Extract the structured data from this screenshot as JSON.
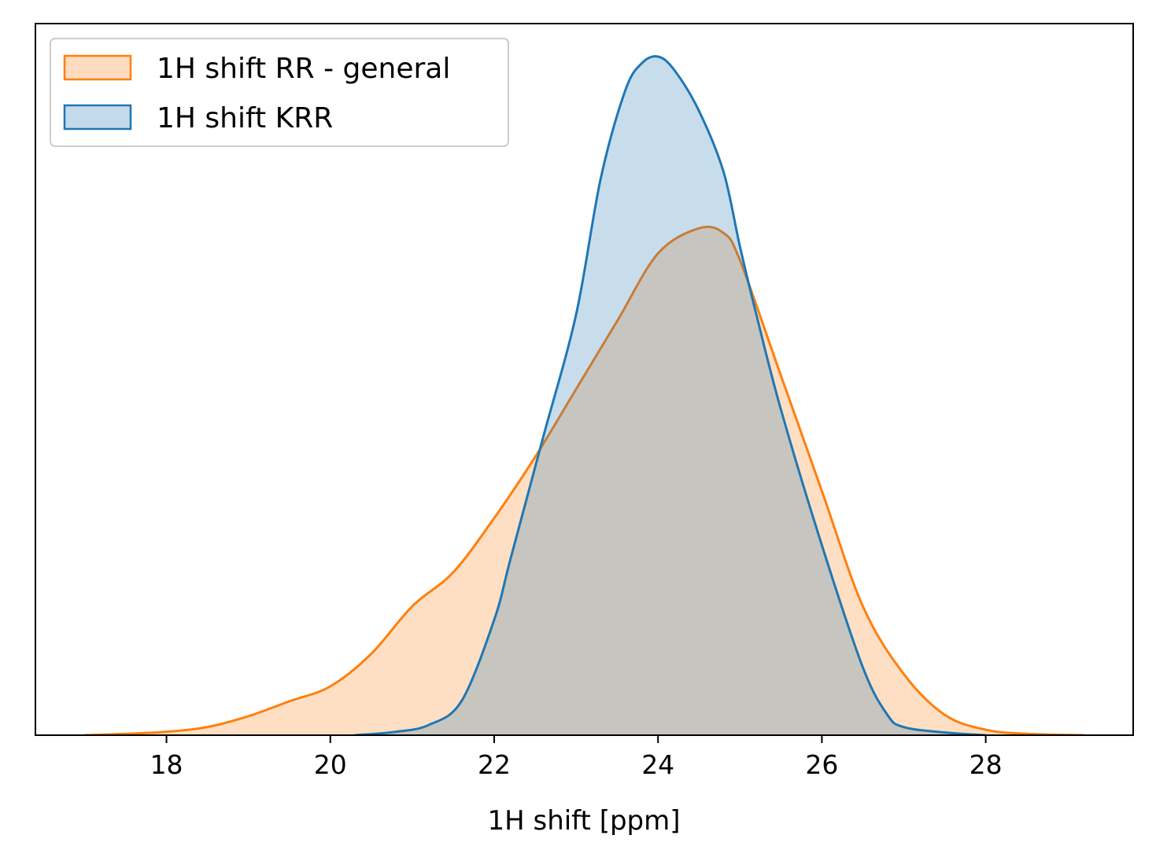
{
  "chart_data": {
    "type": "area",
    "title": "",
    "xlabel": "1H shift [ppm]",
    "ylabel": "",
    "xlim": [
      16.4,
      29.8
    ],
    "ylim": [
      0,
      1.0
    ],
    "xticks": [
      "18",
      "20",
      "22",
      "24",
      "26",
      "28"
    ],
    "grid": false,
    "legend_position": "top-left",
    "series": [
      {
        "name": "1H shift RR - general",
        "color": "#ff7f0e",
        "fill": "#ffdcbf",
        "x": [
          17.0,
          17.5,
          18.0,
          18.5,
          19.0,
          19.5,
          20.0,
          20.5,
          21.0,
          21.5,
          22.0,
          22.5,
          23.0,
          23.5,
          24.0,
          24.5,
          24.8,
          25.0,
          25.5,
          26.0,
          26.5,
          27.0,
          27.5,
          28.0,
          28.5,
          29.2
        ],
        "y": [
          0.0,
          0.002,
          0.005,
          0.012,
          0.028,
          0.05,
          0.072,
          0.12,
          0.19,
          0.24,
          0.32,
          0.41,
          0.51,
          0.61,
          0.71,
          0.747,
          0.74,
          0.7,
          0.53,
          0.36,
          0.19,
          0.09,
          0.03,
          0.008,
          0.002,
          0.0
        ]
      },
      {
        "name": "1H shift KRR",
        "color": "#1f77b4",
        "fill": "#c4daec",
        "x": [
          20.3,
          20.8,
          21.2,
          21.6,
          22.0,
          22.2,
          22.6,
          23.0,
          23.3,
          23.6,
          23.8,
          24.0,
          24.2,
          24.5,
          24.8,
          25.0,
          25.2,
          25.5,
          26.0,
          26.5,
          26.8,
          27.0,
          27.5,
          28.0
        ],
        "y": [
          0.0,
          0.005,
          0.015,
          0.05,
          0.17,
          0.26,
          0.44,
          0.62,
          0.82,
          0.95,
          0.99,
          1.0,
          0.98,
          0.92,
          0.83,
          0.72,
          0.62,
          0.48,
          0.28,
          0.1,
          0.03,
          0.012,
          0.004,
          0.0
        ]
      }
    ]
  }
}
